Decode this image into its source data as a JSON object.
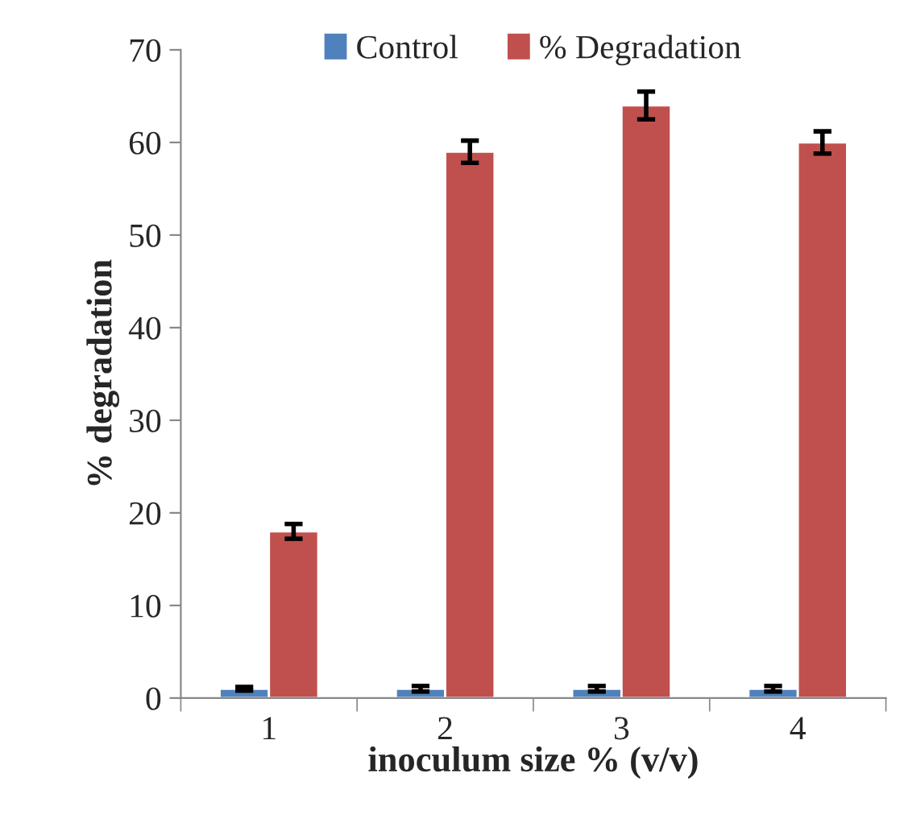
{
  "chart_data": {
    "type": "bar",
    "xlabel": "inoculum size % (v/v)",
    "ylabel": "% degradation",
    "categories": [
      "1",
      "2",
      "3",
      "4"
    ],
    "series": [
      {
        "name": "Control",
        "color": "#4f81bd",
        "values": [
          1,
          1,
          1,
          1
        ],
        "errors": [
          0.2,
          0.3,
          0.3,
          0.3
        ]
      },
      {
        "name": "% Degradation",
        "color": "#c0504d",
        "values": [
          18,
          59,
          64,
          60
        ],
        "errors": [
          0.8,
          1.2,
          1.5,
          1.2
        ]
      }
    ],
    "ylim": [
      0,
      70
    ],
    "yticks": [
      0,
      10,
      20,
      30,
      40,
      50,
      60,
      70
    ],
    "grid": false,
    "legend": "top"
  }
}
